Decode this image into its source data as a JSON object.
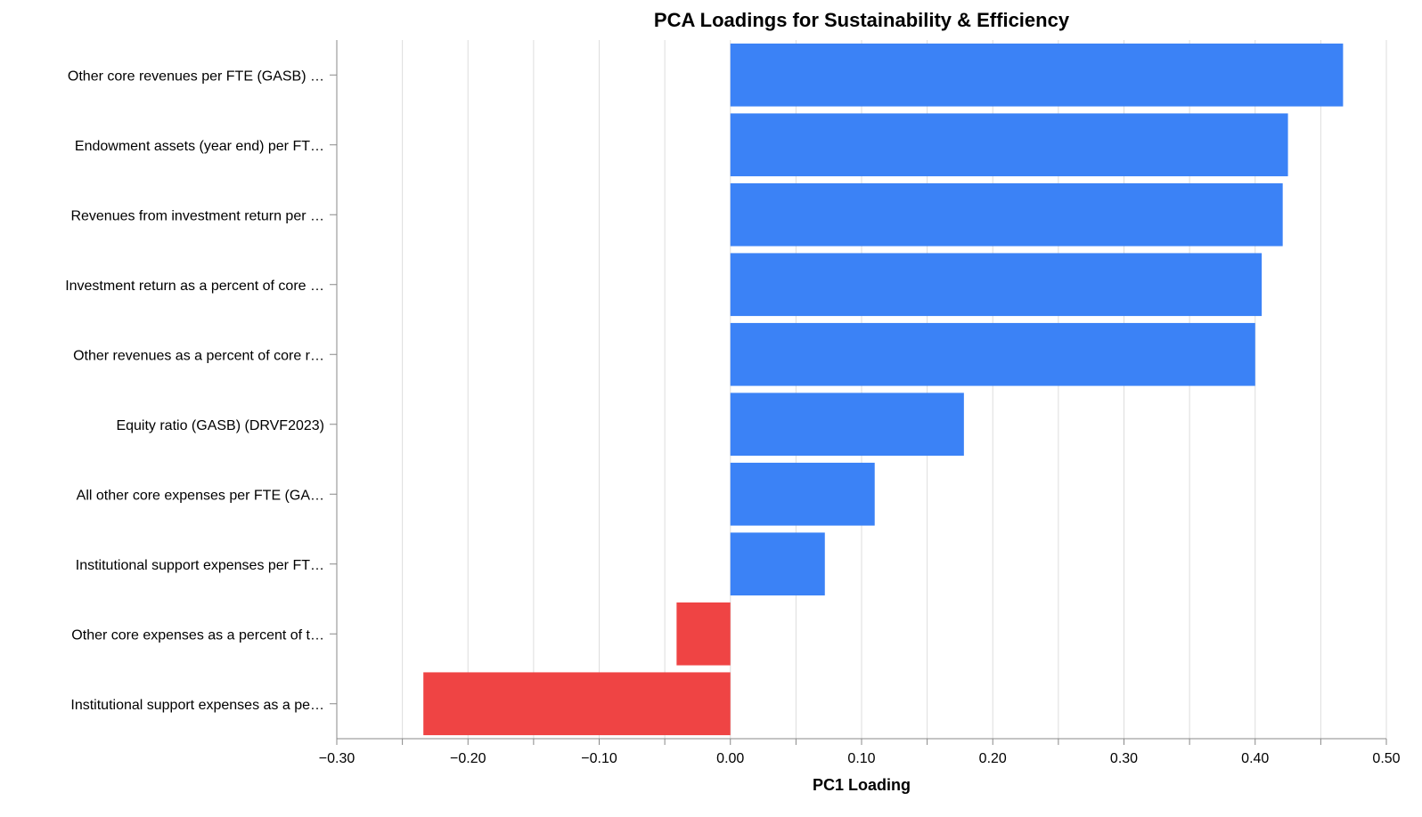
{
  "chart_data": {
    "type": "bar",
    "orientation": "horizontal",
    "title": "PCA Loadings for Sustainability & Efficiency",
    "xlabel": "PC1 Loading",
    "ylabel": "",
    "xlim": [
      -0.3,
      0.5
    ],
    "x_ticks": [
      "−0.30",
      "−0.20",
      "−0.10",
      "0.00",
      "0.10",
      "0.20",
      "0.30",
      "0.40",
      "0.50"
    ],
    "x_tick_values": [
      -0.3,
      -0.2,
      -0.1,
      0.0,
      0.1,
      0.2,
      0.3,
      0.4,
      0.5
    ],
    "grid": true,
    "legend": "none",
    "colors": {
      "positive": "#3b82f6",
      "negative": "#ef4444"
    },
    "categories": [
      "Other core revenues per FTE (GASB) …",
      "Endowment assets (year end) per FT…",
      "Revenues from investment return per …",
      "Investment return as a percent of core …",
      "Other revenues as a percent of core r…",
      "Equity ratio (GASB) (DRVF2023)",
      "All other core expenses per FTE (GA…",
      "Institutional support expenses per FT…",
      "Other core expenses as a percent of t…",
      "Institutional support expenses as a pe…"
    ],
    "values": [
      0.467,
      0.425,
      0.421,
      0.405,
      0.4,
      0.178,
      0.11,
      0.072,
      -0.041,
      -0.234
    ]
  }
}
